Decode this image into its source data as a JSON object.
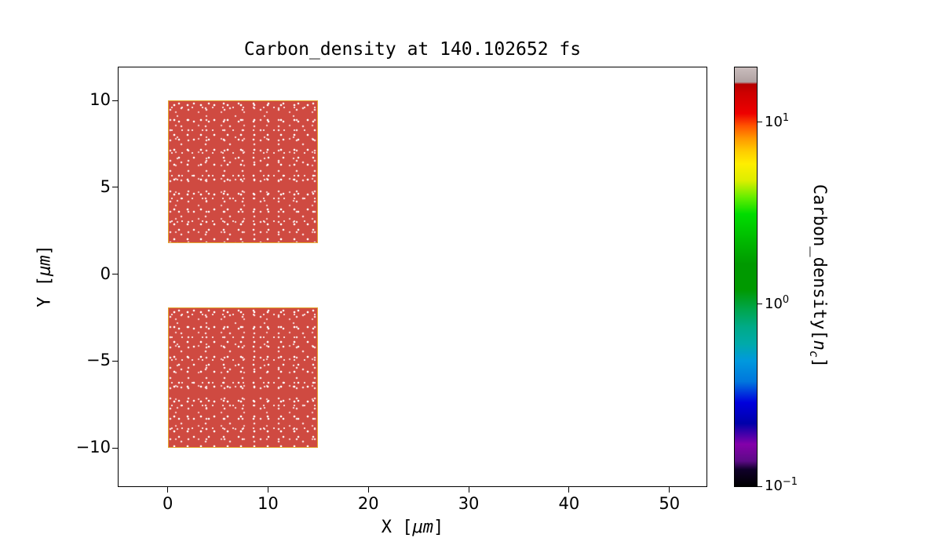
{
  "chart_data": {
    "type": "heatmap",
    "title": "Carbon_density at 140.102652 fs",
    "time_fs": 140.102652,
    "xlabel": "X [μm]",
    "ylabel": "Y [μm]",
    "xlim": [
      -4.9,
      53.7
    ],
    "ylim": [
      -12.2,
      11.9
    ],
    "x_ticks": [
      0,
      10,
      20,
      30,
      40,
      50
    ],
    "y_ticks": [
      -10,
      -5,
      0,
      5,
      10
    ],
    "grid": false,
    "background_value": 0,
    "blocks": [
      {
        "name": "upper",
        "x0": 0,
        "x1": 15,
        "y0": 1.8,
        "y1": 10,
        "density_nc": 10,
        "fill": "#cf4a41",
        "edge": "#e2a62c"
      },
      {
        "name": "lower",
        "x0": 0,
        "x1": 15,
        "y0": -10,
        "y1": -1.9,
        "density_nc": 10,
        "fill": "#cf4a41",
        "edge": "#e2a62c"
      }
    ],
    "colorbar": {
      "label": "Carbon_density[n_c]",
      "scale": "log",
      "vmin": 0.1,
      "vmax": 20,
      "colormap": "nipy_spectral",
      "ticks": [
        {
          "value": 10,
          "base": "10",
          "exp": "1"
        },
        {
          "value": 1,
          "base": "10",
          "exp": "0"
        },
        {
          "value": 0.1,
          "base": "10",
          "exp": "−1"
        }
      ],
      "stops": [
        {
          "pos": 0,
          "color": "#000000"
        },
        {
          "pos": 4,
          "color": "#10002a"
        },
        {
          "pos": 6,
          "color": "#5c0a86"
        },
        {
          "pos": 10,
          "color": "#8400aa"
        },
        {
          "pos": 15,
          "color": "#0000aa"
        },
        {
          "pos": 20,
          "color": "#0000dd"
        },
        {
          "pos": 25,
          "color": "#0077dd"
        },
        {
          "pos": 30,
          "color": "#0099dd"
        },
        {
          "pos": 34,
          "color": "#00aaaa"
        },
        {
          "pos": 38,
          "color": "#00aa88"
        },
        {
          "pos": 42,
          "color": "#00a650"
        },
        {
          "pos": 47,
          "color": "#009900"
        },
        {
          "pos": 53,
          "color": "#009900"
        },
        {
          "pos": 59,
          "color": "#00bb00"
        },
        {
          "pos": 65,
          "color": "#00dd00"
        },
        {
          "pos": 69,
          "color": "#66ee00"
        },
        {
          "pos": 73,
          "color": "#ddee00"
        },
        {
          "pos": 77,
          "color": "#ffee00"
        },
        {
          "pos": 80,
          "color": "#ffcc00"
        },
        {
          "pos": 83,
          "color": "#ff9900"
        },
        {
          "pos": 86,
          "color": "#ff5500"
        },
        {
          "pos": 89,
          "color": "#ee0000"
        },
        {
          "pos": 94,
          "color": "#cc0000"
        },
        {
          "pos": 96,
          "color": "#b40000"
        },
        {
          "pos": 96.5,
          "color": "#b0a2a2"
        },
        {
          "pos": 100,
          "color": "#c9bcbc"
        }
      ]
    }
  },
  "labels": {
    "x_pre": "X [",
    "x_math": "μm",
    "x_post": "]",
    "y_pre": "Y [",
    "y_math": "μm",
    "y_post": "]",
    "cbar_pre": "Carbon_density[",
    "cbar_math": "n",
    "cbar_sub": "c",
    "cbar_post": "]"
  }
}
